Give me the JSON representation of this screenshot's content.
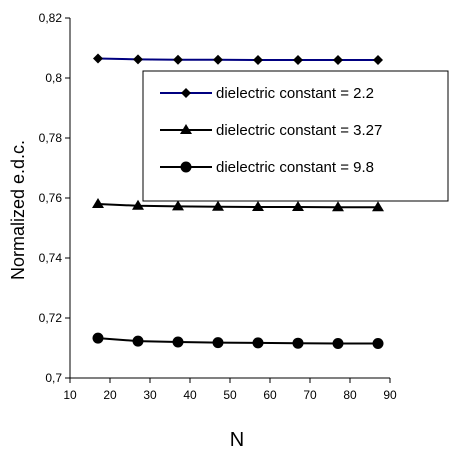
{
  "chart_data": {
    "type": "line",
    "xlabel": "N",
    "ylabel": "Normalized e.d.c.",
    "xlim": [
      10,
      90
    ],
    "ylim": [
      0.7,
      0.82
    ],
    "xticks": [
      "10",
      "20",
      "30",
      "40",
      "50",
      "60",
      "70",
      "80",
      "90"
    ],
    "yticks": [
      "0,7",
      "0,72",
      "0,74",
      "0,76",
      "0,78",
      "0,8",
      "0,82"
    ],
    "grid": false,
    "legend_position": "top-right",
    "x": [
      17,
      27,
      37,
      47,
      57,
      67,
      77,
      87
    ],
    "series": [
      {
        "name": "dielectric constant = 2.2",
        "marker": "diamond",
        "color": "#000080",
        "values": [
          0.8065,
          0.8062,
          0.8061,
          0.8061,
          0.806,
          0.806,
          0.806,
          0.806
        ]
      },
      {
        "name": "dielectric constant = 3.27",
        "marker": "triangle",
        "color": "#000000",
        "values": [
          0.758,
          0.7574,
          0.7572,
          0.7571,
          0.757,
          0.757,
          0.7569,
          0.7569
        ]
      },
      {
        "name": "dielectric constant = 9.8",
        "marker": "circle",
        "color": "#000000",
        "values": [
          0.7133,
          0.7123,
          0.712,
          0.7118,
          0.7117,
          0.7116,
          0.7115,
          0.7115
        ]
      }
    ]
  }
}
